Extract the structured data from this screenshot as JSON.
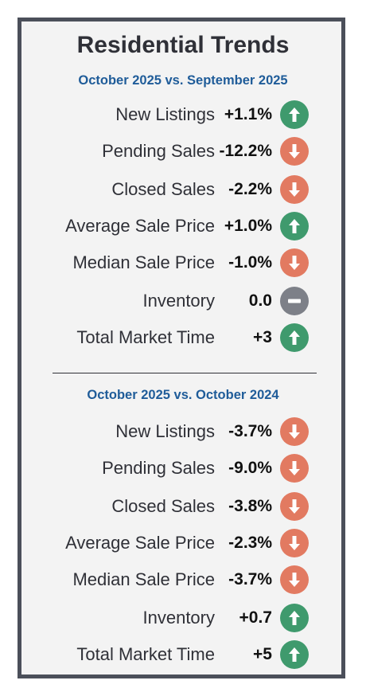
{
  "title": "Residential Trends",
  "sections": [
    {
      "subtitle": "October 2025 vs. September 2025",
      "rows": [
        {
          "label": "New Listings",
          "value": "+1.1%",
          "trend": "up",
          "icon": "arrow-up-icon"
        },
        {
          "label": "Pending Sales",
          "value": "-12.2%",
          "trend": "down",
          "icon": "arrow-down-icon"
        },
        {
          "label": "Closed Sales",
          "value": "-2.2%",
          "trend": "down",
          "icon": "arrow-down-icon"
        },
        {
          "label": "Average Sale Price",
          "value": "+1.0%",
          "trend": "up",
          "icon": "arrow-up-icon"
        },
        {
          "label": "Median Sale Price",
          "value": "-1.0%",
          "trend": "down",
          "icon": "arrow-down-icon"
        },
        {
          "label": "Inventory",
          "value": "0.0",
          "trend": "flat",
          "icon": "minus-icon"
        },
        {
          "label": "Total Market Time",
          "value": "+3",
          "trend": "up",
          "icon": "arrow-up-icon"
        }
      ]
    },
    {
      "subtitle": "October 2025 vs. October 2024",
      "rows": [
        {
          "label": "New Listings",
          "value": "-3.7%",
          "trend": "down",
          "icon": "arrow-down-icon"
        },
        {
          "label": "Pending Sales",
          "value": "-9.0%",
          "trend": "down",
          "icon": "arrow-down-icon"
        },
        {
          "label": "Closed Sales",
          "value": "-3.8%",
          "trend": "down",
          "icon": "arrow-down-icon"
        },
        {
          "label": "Average Sale Price",
          "value": "-2.3%",
          "trend": "down",
          "icon": "arrow-down-icon"
        },
        {
          "label": "Median Sale Price",
          "value": "-3.7%",
          "trend": "down",
          "icon": "arrow-down-icon"
        },
        {
          "label": "Inventory",
          "value": "+0.7",
          "trend": "up",
          "icon": "arrow-up-icon"
        },
        {
          "label": "Total Market Time",
          "value": "+5",
          "trend": "up",
          "icon": "arrow-up-icon"
        }
      ]
    }
  ],
  "colors": {
    "up": "#3f9a6d",
    "down": "#e27a61",
    "flat": "#7d8088",
    "subtitle": "#1f5c99",
    "border": "#4b4f5a"
  }
}
